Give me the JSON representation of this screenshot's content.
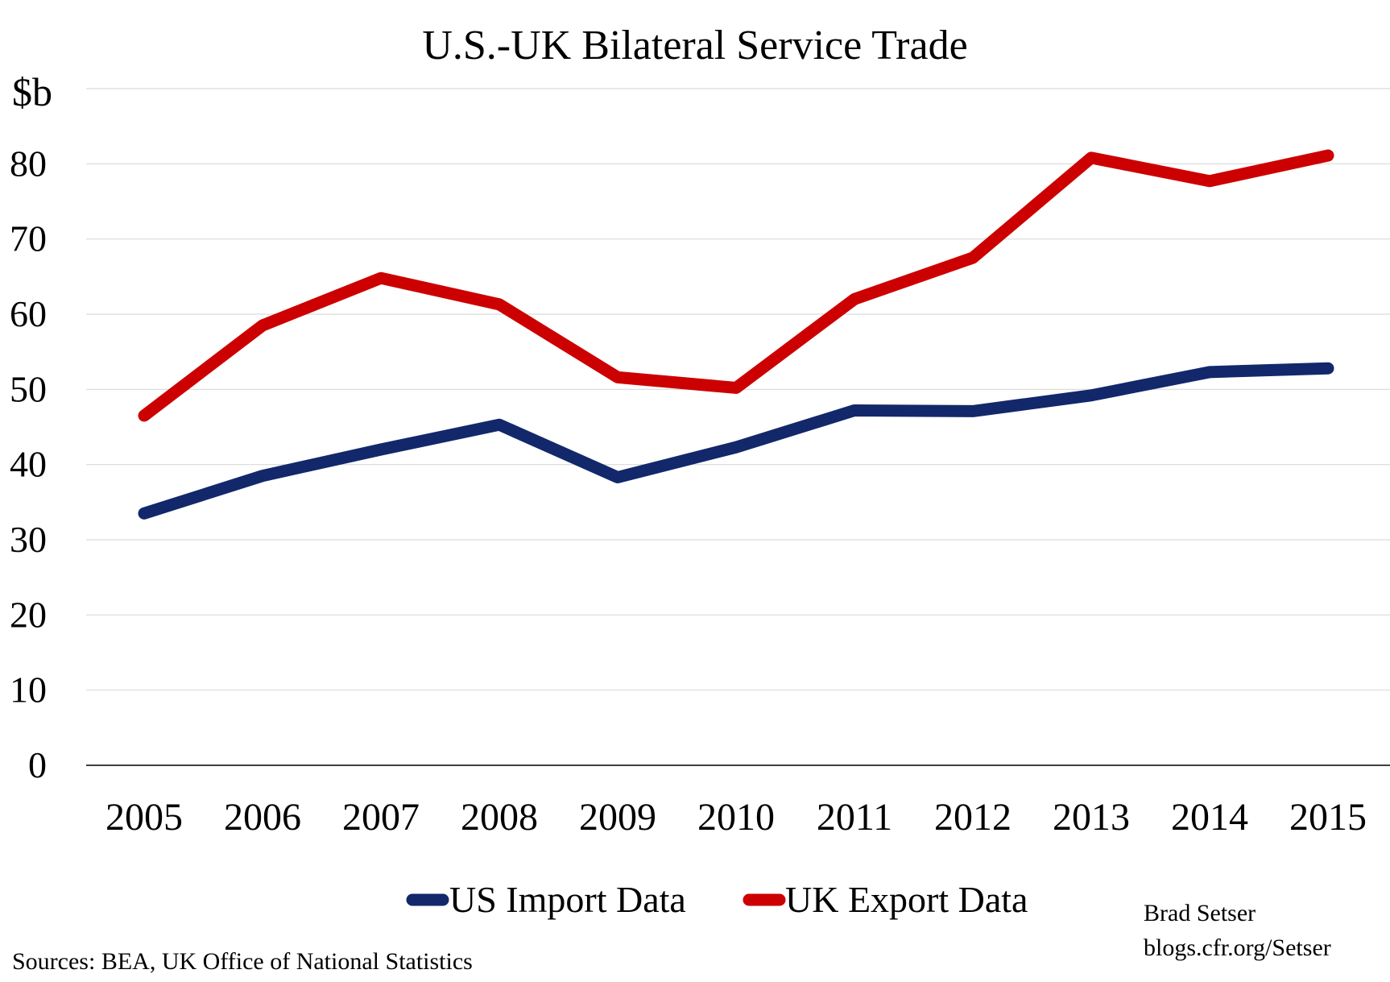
{
  "chart_data": {
    "type": "line",
    "title": "U.S.-UK Bilateral Service Trade",
    "ylabel": "$b",
    "xlabel": "",
    "categories": [
      "2005",
      "2006",
      "2007",
      "2008",
      "2009",
      "2010",
      "2011",
      "2012",
      "2013",
      "2014",
      "2015"
    ],
    "ylim": [
      0,
      90
    ],
    "yticks": [
      0,
      10,
      20,
      30,
      40,
      50,
      60,
      70,
      80
    ],
    "grid": true,
    "legend_position": "bottom",
    "series": [
      {
        "name": "US Import Data",
        "color": "#12286b",
        "values": [
          33.5,
          38.5,
          42.0,
          45.3,
          38.3,
          42.3,
          47.2,
          47.1,
          49.2,
          52.3,
          52.8
        ]
      },
      {
        "name": "UK Export Data",
        "color": "#cc0000",
        "values": [
          46.5,
          58.5,
          64.8,
          61.3,
          51.6,
          50.2,
          62.0,
          67.5,
          80.8,
          77.7,
          81.1
        ]
      }
    ],
    "source": "Sources: BEA, UK Office of National Statistics",
    "credit_name": "Brad Setser",
    "credit_url": "blogs.cfr.org/Setser"
  }
}
